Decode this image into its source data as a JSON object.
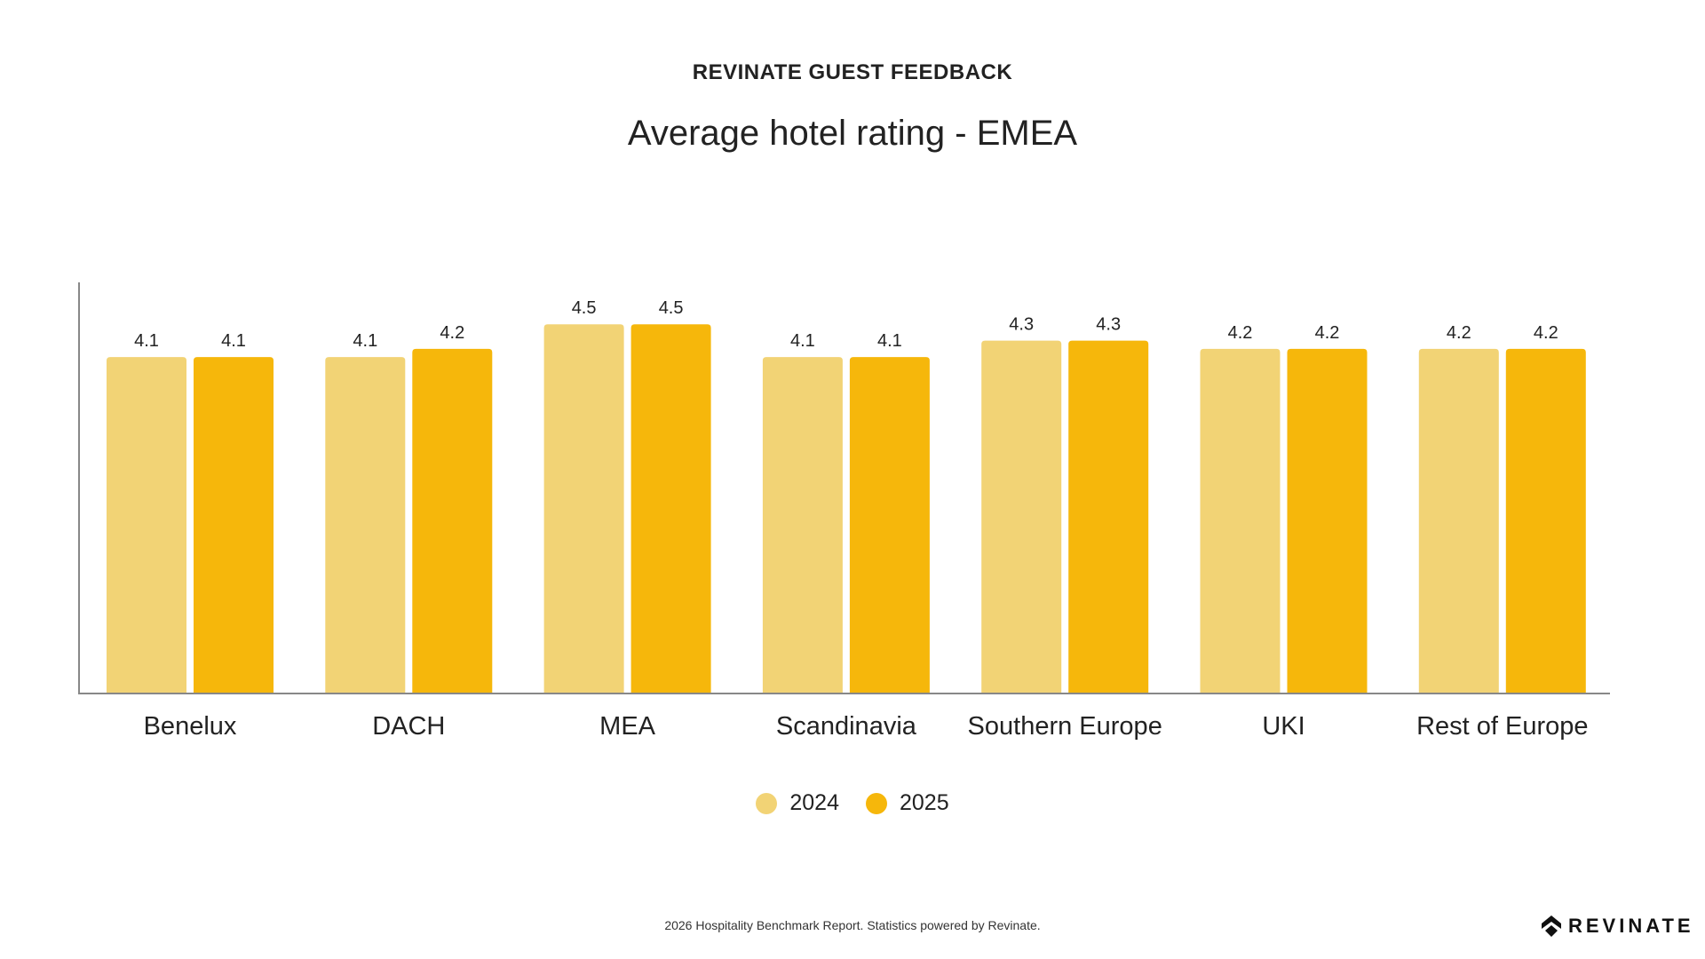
{
  "header": {
    "kicker": "REVINATE GUEST FEEDBACK",
    "title": "Average hotel rating - EMEA"
  },
  "chart_data": {
    "type": "bar",
    "title": "Average hotel rating - EMEA",
    "categories": [
      "Benelux",
      "DACH",
      "MEA",
      "Scandinavia",
      "Southern Europe",
      "UKI",
      "Rest of Europe"
    ],
    "series": [
      {
        "name": "2024",
        "color": "#F2D375",
        "values": [
          4.1,
          4.1,
          4.5,
          4.1,
          4.3,
          4.2,
          4.2
        ]
      },
      {
        "name": "2025",
        "color": "#F6B70B",
        "values": [
          4.1,
          4.2,
          4.5,
          4.1,
          4.3,
          4.2,
          4.2
        ]
      }
    ],
    "ylim": [
      0,
      5
    ],
    "legend": "bottom-center",
    "grid": false
  },
  "footer": {
    "text": "2026 Hospitality Benchmark Report. Statistics powered by Revinate.",
    "logo": "REVINATE"
  }
}
